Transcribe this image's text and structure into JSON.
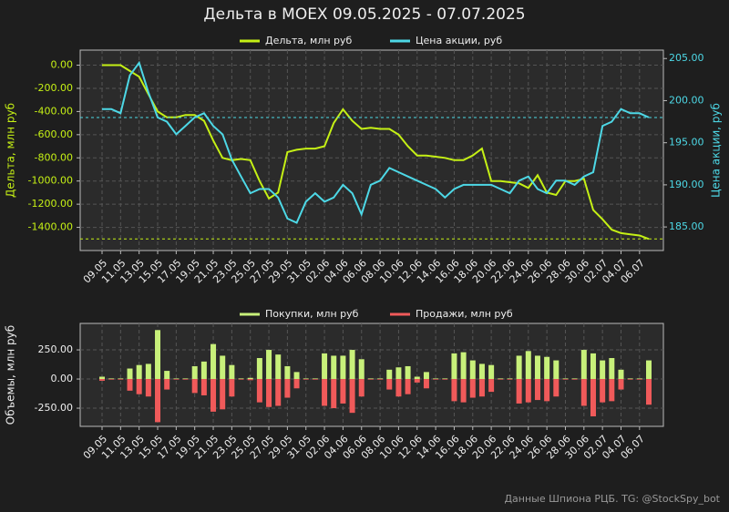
{
  "chart_data": [
    {
      "type": "line",
      "title": "Дельта в MOEX 09.05.2025 - 07.07.2025",
      "ylabel": "Дельта, млн руб",
      "y2label": "Цена акции, руб",
      "legend": "top",
      "grid": true,
      "categories": [
        "09.05",
        null,
        "11.05",
        null,
        "13.05",
        null,
        "15.05",
        null,
        "17.05",
        null,
        "19.05",
        null,
        "21.05",
        null,
        "23.05",
        null,
        "25.05",
        null,
        "27.05",
        null,
        "29.05",
        null,
        "31.05",
        null,
        "02.06",
        null,
        "04.06",
        null,
        "06.06",
        null,
        "08.06",
        null,
        "10.06",
        null,
        "12.06",
        null,
        "14.06",
        null,
        "16.06",
        null,
        "18.06",
        null,
        "20.06",
        null,
        "22.06",
        null,
        "24.06",
        null,
        "26.06",
        null,
        "28.06",
        null,
        "30.06",
        null,
        "02.07",
        null,
        "04.07",
        null,
        "06.07",
        null
      ],
      "ylim": [
        -1600,
        130
      ],
      "yticks": [
        {
          "value": 0,
          "label": "0.00"
        },
        {
          "value": -200,
          "label": "-200.00"
        },
        {
          "value": -400,
          "label": "-400.00"
        },
        {
          "value": -600,
          "label": "-600.00"
        },
        {
          "value": -800,
          "label": "-800.00"
        },
        {
          "value": -1000,
          "label": "-1000.00"
        },
        {
          "value": -1200,
          "label": "-1200.00"
        },
        {
          "value": -1400,
          "label": "-1400.00"
        }
      ],
      "y2lim": [
        182.2,
        206
      ],
      "y2ticks": [
        {
          "value": 185,
          "label": "185.00"
        },
        {
          "value": 190,
          "label": "190.00"
        },
        {
          "value": 195,
          "label": "195.00"
        },
        {
          "value": 200,
          "label": "200.00"
        },
        {
          "value": 205,
          "label": "205.00"
        }
      ],
      "series": [
        {
          "name": "Дельта, млн руб",
          "color": "#c5f015",
          "axis": "y",
          "values": [
            0,
            0,
            0,
            -50,
            -100,
            -250,
            -400,
            -450,
            -450,
            -430,
            -430,
            -480,
            -650,
            -800,
            -820,
            -810,
            -820,
            -1000,
            -1150,
            -1100,
            -750,
            -730,
            -720,
            -720,
            -700,
            -500,
            -380,
            -480,
            -550,
            -540,
            -550,
            -550,
            -600,
            -700,
            -780,
            -780,
            -790,
            -800,
            -820,
            -820,
            -780,
            -720,
            -1000,
            -1000,
            -1010,
            -1020,
            -1060,
            -950,
            -1100,
            -1120,
            -1000,
            -1000,
            -980,
            -1250,
            -1330,
            -1420,
            -1450,
            -1460,
            -1470,
            -1500
          ]
        },
        {
          "name": "Цена акции, руб",
          "color": "#4dd8e6",
          "axis": "y2",
          "values": [
            199,
            199,
            198.5,
            203,
            204.5,
            201,
            198,
            197.5,
            196,
            197,
            198,
            198.5,
            197,
            196,
            193,
            191,
            189,
            189.5,
            189.5,
            188.5,
            186,
            185.5,
            188,
            189,
            188,
            188.5,
            190,
            189,
            186.5,
            190,
            190.5,
            192,
            191.5,
            191,
            190.5,
            190,
            189.5,
            188.5,
            189.5,
            190,
            190,
            190,
            190,
            189.5,
            189,
            190.5,
            191,
            189.5,
            189,
            190.5,
            190.5,
            190,
            191,
            191.5,
            197,
            197.5,
            199,
            198.5,
            198.5,
            198
          ]
        }
      ]
    },
    {
      "type": "bar",
      "ylabel": "Объемы, млн руб",
      "legend": "top",
      "grid": true,
      "categories": [
        "09.05",
        null,
        "11.05",
        null,
        "13.05",
        null,
        "15.05",
        null,
        "17.05",
        null,
        "19.05",
        null,
        "21.05",
        null,
        "23.05",
        null,
        "25.05",
        null,
        "27.05",
        null,
        "29.05",
        null,
        "31.05",
        null,
        "02.06",
        null,
        "04.06",
        null,
        "06.06",
        null,
        "08.06",
        null,
        "10.06",
        null,
        "12.06",
        null,
        "14.06",
        null,
        "16.06",
        null,
        "18.06",
        null,
        "20.06",
        null,
        "22.06",
        null,
        "24.06",
        null,
        "26.06",
        null,
        "28.06",
        null,
        "30.06",
        null,
        "02.07",
        null,
        "04.07",
        null,
        "06.07",
        null
      ],
      "ylim": [
        -406,
        477
      ],
      "yticks": [
        {
          "value": -250,
          "label": "-250.00"
        },
        {
          "value": 0,
          "label": "0.00"
        },
        {
          "value": 250,
          "label": "250.00"
        }
      ],
      "series": [
        {
          "name": "Покупки, млн руб",
          "color": "#c8f07a",
          "values": [
            20,
            5,
            5,
            90,
            120,
            130,
            420,
            70,
            5,
            5,
            110,
            150,
            300,
            200,
            120,
            5,
            10,
            180,
            250,
            210,
            110,
            60,
            5,
            5,
            220,
            200,
            200,
            250,
            170,
            5,
            5,
            80,
            100,
            110,
            20,
            60,
            5,
            5,
            220,
            230,
            160,
            130,
            120,
            5,
            5,
            200,
            240,
            200,
            190,
            160,
            5,
            5,
            250,
            220,
            160,
            180,
            80,
            5,
            5,
            160
          ]
        },
        {
          "name": "Продажи, млн руб",
          "color": "#f05a5a",
          "values": [
            -15,
            -5,
            -5,
            -100,
            -130,
            -150,
            -370,
            -90,
            -5,
            -5,
            -120,
            -140,
            -280,
            -260,
            -150,
            -5,
            -10,
            -200,
            -240,
            -230,
            -160,
            -80,
            -5,
            -5,
            -230,
            -250,
            -210,
            -290,
            -150,
            -5,
            -5,
            -90,
            -150,
            -130,
            -30,
            -80,
            -5,
            -5,
            -190,
            -200,
            -160,
            -150,
            -110,
            -5,
            -5,
            -210,
            -200,
            -180,
            -190,
            -150,
            -5,
            -5,
            -230,
            -320,
            -200,
            -190,
            -90,
            -5,
            -5,
            -220
          ]
        }
      ]
    }
  ],
  "footer": "Данные Шпиона РЦБ. TG: @StockSpy_bot"
}
